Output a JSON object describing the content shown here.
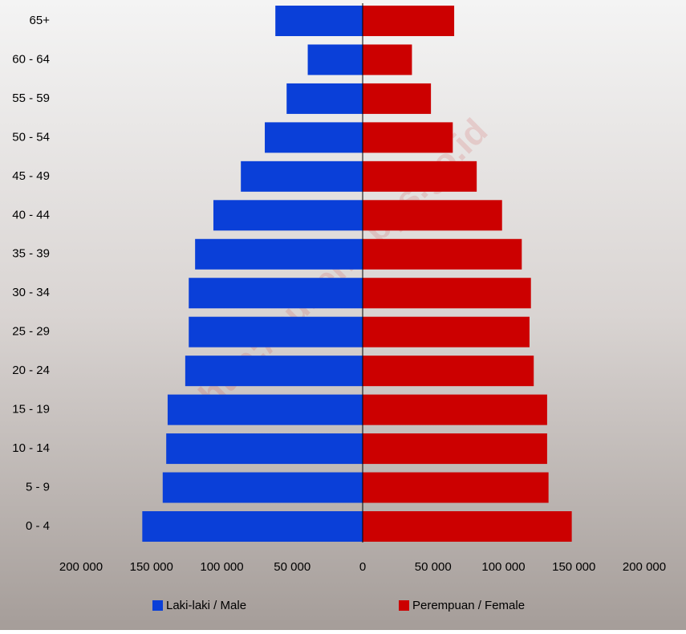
{
  "chart_data": {
    "type": "population-pyramid",
    "watermark": "http://sulteng.bps.go.id",
    "categories": [
      "0 - 4",
      "5 - 9",
      "10 - 14",
      "15 - 19",
      "20 - 24",
      "25 - 29",
      "30 - 34",
      "35 - 39",
      "40 - 44",
      "45 - 49",
      "50 - 54",
      "55 - 59",
      "60 - 64",
      "65+"
    ],
    "series": [
      {
        "name": "Laki-laki / Male",
        "color": "#0a3fd8",
        "values": [
          156500,
          142000,
          139500,
          138500,
          126000,
          123500,
          123500,
          119000,
          106000,
          86500,
          69500,
          54000,
          39000,
          62000
        ]
      },
      {
        "name": "Perempuan / Female",
        "color": "#cc0000",
        "values": [
          148500,
          132000,
          131000,
          131000,
          121500,
          118500,
          119500,
          113000,
          99000,
          81000,
          64000,
          48500,
          35000,
          65000
        ]
      }
    ],
    "xlim": [
      0,
      200000
    ],
    "male_xticks": [
      {
        "value": 200000,
        "label": "200 000"
      },
      {
        "value": 150000,
        "label": "150 000"
      },
      {
        "value": 100000,
        "label": "100 000"
      },
      {
        "value": 50000,
        "label": "50 000"
      }
    ],
    "female_xticks": [
      0,
      {
        "value": 50000,
        "label": "50 000"
      },
      {
        "value": 100000,
        "label": "100 000"
      },
      {
        "value": 150000,
        "label": "150 000"
      },
      {
        "value": 200000,
        "label": "200 000"
      }
    ]
  }
}
